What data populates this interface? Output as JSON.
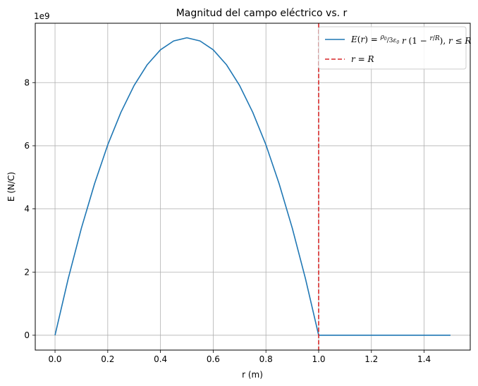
{
  "chart_data": {
    "type": "line",
    "title": "Magnitud del campo eléctrico vs. r",
    "xlabel": "r (m)",
    "ylabel": "E (N/C)",
    "y_offset_text": "1e9",
    "xlim": [
      -0.075,
      1.575
    ],
    "ylim": [
      -0.47,
      9.88
    ],
    "x_ticks": [
      0.0,
      0.2,
      0.4,
      0.6,
      0.8,
      1.0,
      1.2,
      1.4
    ],
    "x_tick_labels": [
      "0.0",
      "0.2",
      "0.4",
      "0.6",
      "0.8",
      "1.0",
      "1.2",
      "1.4"
    ],
    "y_ticks": [
      0,
      2,
      4,
      6,
      8
    ],
    "y_tick_labels": [
      "0",
      "2",
      "4",
      "6",
      "8"
    ],
    "grid": true,
    "legend_placement": "upper right",
    "series": [
      {
        "name": "E(r) = ρ₀/(3ε₀) r (1 − r/R), r ≤ R",
        "color": "#1f77b4",
        "style": "solid",
        "x": [
          0.0,
          0.05,
          0.1,
          0.15,
          0.2,
          0.25,
          0.3,
          0.35,
          0.4,
          0.45,
          0.5,
          0.55,
          0.6,
          0.65,
          0.7,
          0.75,
          0.8,
          0.85,
          0.9,
          0.95,
          1.0,
          1.1,
          1.2,
          1.3,
          1.4,
          1.5
        ],
        "y": [
          0.0,
          1.79,
          3.39,
          4.8,
          6.03,
          7.06,
          7.91,
          8.57,
          9.04,
          9.32,
          9.42,
          9.32,
          9.04,
          8.57,
          7.91,
          7.06,
          6.03,
          4.8,
          3.39,
          1.79,
          0.0,
          0.0,
          0.0,
          0.0,
          0.0,
          0.0
        ]
      },
      {
        "name": "r = R",
        "color": "#d62728",
        "style": "dashed",
        "vline_x": 1.0
      }
    ]
  }
}
